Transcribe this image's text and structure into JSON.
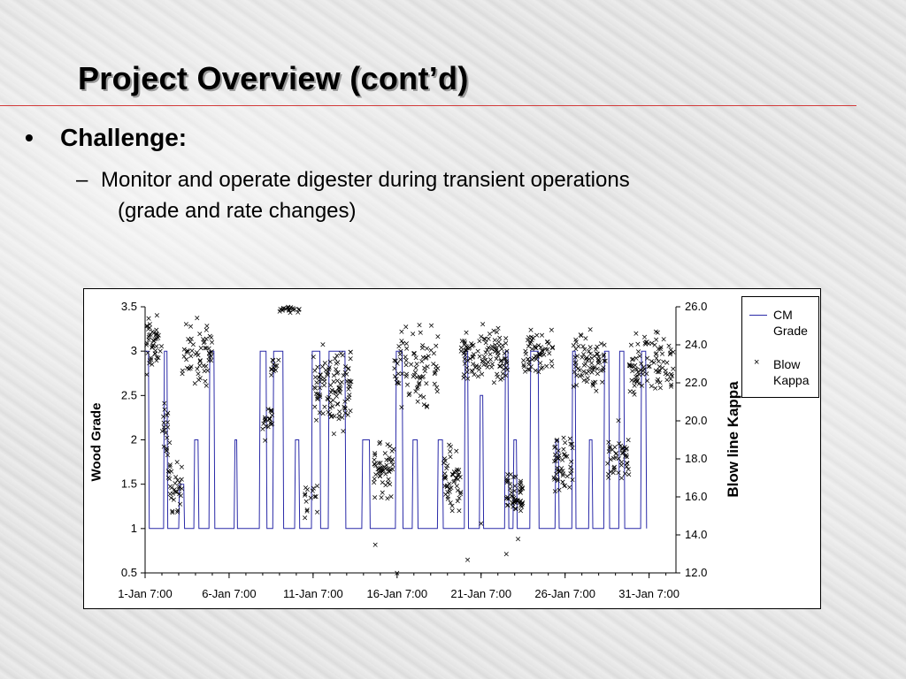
{
  "slide": {
    "title": "Project Overview (cont’d)",
    "bullet_symbol": "•",
    "bullet": "Challenge:",
    "sub_dash": "–",
    "sub_line1": "Monitor and operate digester during transient operations",
    "sub_line2": "(grade and rate changes)"
  },
  "colors": {
    "title_rule": "#d23a3a",
    "grade_line": "#2a2aa8",
    "kappa_marker": "#000000"
  },
  "chart_data": {
    "type": "line",
    "title": "",
    "ylabel": "Wood Grade",
    "y2label": "Blow line Kappa",
    "ylim": [
      0.5,
      3.5
    ],
    "y2lim": [
      12.0,
      26.0
    ],
    "yticks": [
      "0.5",
      "1",
      "1.5",
      "2",
      "2.5",
      "3",
      "3.5"
    ],
    "y2ticks": [
      "12.0",
      "14.0",
      "16.0",
      "18.0",
      "20.0",
      "22.0",
      "24.0",
      "26.0"
    ],
    "xlim_days": [
      1,
      32.6
    ],
    "xticks": [
      {
        "day": 1,
        "label": "1-Jan 7:00"
      },
      {
        "day": 6,
        "label": "6-Jan 7:00"
      },
      {
        "day": 11,
        "label": "11-Jan 7:00"
      },
      {
        "day": 16,
        "label": "16-Jan 7:00"
      },
      {
        "day": 21,
        "label": "21-Jan 7:00"
      },
      {
        "day": 26,
        "label": "26-Jan 7:00"
      },
      {
        "day": 31,
        "label": "31-Jan 7:00"
      }
    ],
    "legend_position": "right",
    "series": [
      {
        "name": "CM Grade",
        "axis": "left",
        "style": "line",
        "points": [
          [
            1.0,
            3.0
          ],
          [
            1.2,
            3.0
          ],
          [
            1.25,
            1.0
          ],
          [
            2.1,
            1.0
          ],
          [
            2.15,
            3.0
          ],
          [
            2.3,
            3.0
          ],
          [
            2.35,
            1.0
          ],
          [
            3.0,
            1.0
          ],
          [
            3.05,
            1.5
          ],
          [
            3.3,
            1.5
          ],
          [
            3.35,
            1.0
          ],
          [
            3.9,
            1.0
          ],
          [
            3.95,
            2.0
          ],
          [
            4.15,
            2.0
          ],
          [
            4.2,
            1.0
          ],
          [
            4.8,
            1.0
          ],
          [
            4.85,
            3.0
          ],
          [
            5.1,
            3.0
          ],
          [
            5.15,
            1.0
          ],
          [
            6.3,
            1.0
          ],
          [
            6.35,
            2.0
          ],
          [
            6.45,
            2.0
          ],
          [
            6.5,
            1.0
          ],
          [
            7.8,
            1.0
          ],
          [
            7.85,
            3.0
          ],
          [
            8.2,
            3.0
          ],
          [
            8.25,
            1.0
          ],
          [
            8.6,
            1.0
          ],
          [
            8.65,
            3.0
          ],
          [
            9.2,
            3.0
          ],
          [
            9.25,
            1.0
          ],
          [
            9.9,
            1.0
          ],
          [
            9.95,
            2.0
          ],
          [
            10.15,
            2.0
          ],
          [
            10.2,
            1.0
          ],
          [
            10.9,
            1.0
          ],
          [
            10.95,
            3.0
          ],
          [
            11.4,
            3.0
          ],
          [
            11.45,
            1.0
          ],
          [
            11.9,
            1.0
          ],
          [
            11.95,
            3.0
          ],
          [
            12.9,
            3.0
          ],
          [
            12.95,
            1.0
          ],
          [
            13.9,
            1.0
          ],
          [
            13.95,
            2.0
          ],
          [
            14.35,
            2.0
          ],
          [
            14.4,
            1.0
          ],
          [
            15.9,
            1.0
          ],
          [
            15.95,
            3.0
          ],
          [
            16.3,
            3.0
          ],
          [
            16.35,
            1.0
          ],
          [
            16.9,
            1.0
          ],
          [
            16.95,
            2.0
          ],
          [
            17.2,
            2.0
          ],
          [
            17.25,
            1.0
          ],
          [
            18.4,
            1.0
          ],
          [
            18.45,
            2.0
          ],
          [
            18.7,
            2.0
          ],
          [
            18.75,
            1.0
          ],
          [
            20.0,
            1.0
          ],
          [
            20.05,
            3.0
          ],
          [
            20.2,
            3.0
          ],
          [
            20.25,
            1.0
          ],
          [
            20.9,
            1.0
          ],
          [
            20.95,
            2.5
          ],
          [
            21.1,
            2.5
          ],
          [
            21.15,
            1.0
          ],
          [
            22.4,
            1.0
          ],
          [
            22.45,
            3.0
          ],
          [
            22.6,
            3.0
          ],
          [
            22.65,
            1.0
          ],
          [
            22.9,
            1.0
          ],
          [
            22.95,
            2.0
          ],
          [
            23.1,
            2.0
          ],
          [
            23.15,
            1.0
          ],
          [
            23.9,
            1.0
          ],
          [
            23.95,
            3.0
          ],
          [
            24.4,
            3.0
          ],
          [
            24.45,
            1.0
          ],
          [
            25.4,
            1.0
          ],
          [
            25.45,
            2.0
          ],
          [
            25.6,
            2.0
          ],
          [
            25.65,
            1.0
          ],
          [
            26.4,
            1.0
          ],
          [
            26.45,
            3.0
          ],
          [
            26.6,
            3.0
          ],
          [
            26.65,
            1.0
          ],
          [
            27.4,
            1.0
          ],
          [
            27.45,
            2.0
          ],
          [
            27.6,
            2.0
          ],
          [
            27.65,
            1.0
          ],
          [
            28.3,
            1.0
          ],
          [
            28.35,
            3.0
          ],
          [
            28.6,
            3.0
          ],
          [
            28.65,
            1.0
          ],
          [
            29.2,
            1.0
          ],
          [
            29.25,
            3.0
          ],
          [
            29.5,
            3.0
          ],
          [
            29.55,
            1.0
          ],
          [
            30.5,
            1.0
          ],
          [
            30.55,
            3.0
          ],
          [
            30.8,
            3.0
          ],
          [
            30.85,
            1.0
          ]
        ]
      },
      {
        "name": "Blow Kappa",
        "axis": "right",
        "style": "markers",
        "clusters": [
          {
            "day_from": 1.0,
            "day_to": 2.0,
            "kappa_mean": 24.0,
            "spread": 1.3,
            "count": 45
          },
          {
            "day_from": 2.0,
            "day_to": 2.5,
            "kappa_mean": 19.0,
            "spread": 1.8,
            "count": 22
          },
          {
            "day_from": 2.4,
            "day_to": 3.2,
            "kappa_mean": 16.5,
            "spread": 1.2,
            "count": 30
          },
          {
            "day_from": 3.2,
            "day_to": 5.0,
            "kappa_mean": 23.5,
            "spread": 1.5,
            "count": 60
          },
          {
            "day_from": 8.0,
            "day_to": 8.6,
            "kappa_mean": 20.0,
            "spread": 0.8,
            "count": 20
          },
          {
            "day_from": 8.5,
            "day_to": 9.0,
            "kappa_mean": 23.0,
            "spread": 1.0,
            "count": 12
          },
          {
            "day_from": 9.0,
            "day_to": 10.2,
            "kappa_mean": 25.9,
            "spread": 0.15,
            "count": 20
          },
          {
            "day_from": 10.5,
            "day_to": 11.3,
            "kappa_mean": 16.0,
            "spread": 1.0,
            "count": 15
          },
          {
            "day_from": 11.0,
            "day_to": 13.3,
            "kappa_mean": 21.8,
            "spread": 1.8,
            "count": 110
          },
          {
            "day_from": 14.5,
            "day_to": 15.8,
            "kappa_mean": 17.5,
            "spread": 1.3,
            "count": 55
          },
          {
            "day_from": 15.8,
            "day_to": 18.5,
            "kappa_mean": 22.8,
            "spread": 1.8,
            "count": 85
          },
          {
            "day_from": 18.7,
            "day_to": 19.8,
            "kappa_mean": 17.0,
            "spread": 1.5,
            "count": 50
          },
          {
            "day_from": 19.8,
            "day_to": 22.6,
            "kappa_mean": 23.3,
            "spread": 1.3,
            "count": 110
          },
          {
            "day_from": 22.5,
            "day_to": 23.5,
            "kappa_mean": 16.0,
            "spread": 1.0,
            "count": 55
          },
          {
            "day_from": 23.5,
            "day_to": 25.3,
            "kappa_mean": 23.5,
            "spread": 1.2,
            "count": 60
          },
          {
            "day_from": 25.3,
            "day_to": 26.5,
            "kappa_mean": 17.8,
            "spread": 1.5,
            "count": 50
          },
          {
            "day_from": 26.5,
            "day_to": 28.4,
            "kappa_mean": 23.0,
            "spread": 1.3,
            "count": 75
          },
          {
            "day_from": 28.5,
            "day_to": 29.8,
            "kappa_mean": 18.0,
            "spread": 1.5,
            "count": 45
          },
          {
            "day_from": 29.8,
            "day_to": 32.5,
            "kappa_mean": 23.0,
            "spread": 1.4,
            "count": 95
          }
        ],
        "outliers": [
          [
            14.7,
            13.5
          ],
          [
            16.0,
            12.0
          ],
          [
            20.2,
            12.7
          ],
          [
            22.5,
            13.0
          ],
          [
            23.2,
            13.8
          ],
          [
            21.0,
            14.6
          ]
        ]
      }
    ]
  }
}
